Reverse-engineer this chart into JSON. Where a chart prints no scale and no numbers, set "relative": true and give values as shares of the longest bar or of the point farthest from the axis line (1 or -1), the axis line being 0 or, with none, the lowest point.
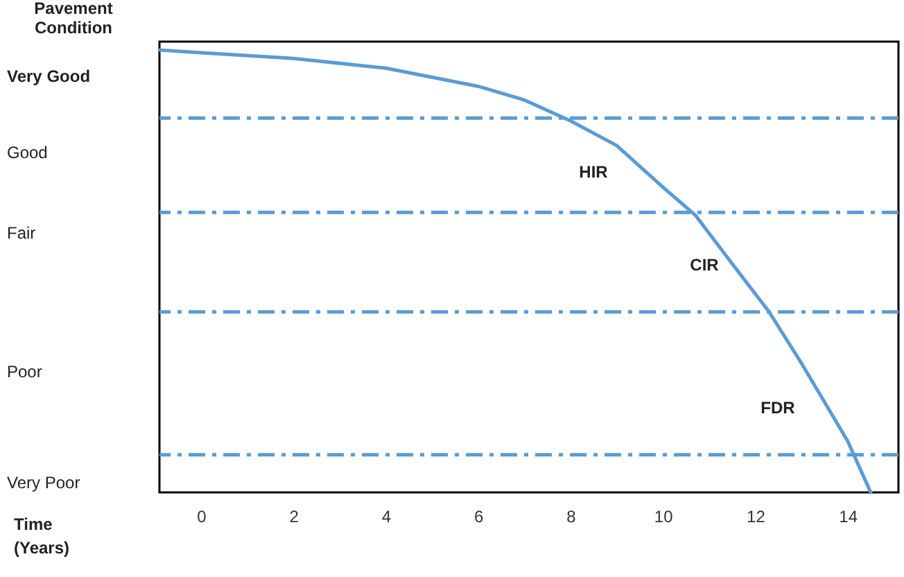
{
  "chart_data": {
    "type": "line",
    "relative": true,
    "ylabel": "Pavement Condition",
    "xlim": [
      -0.9,
      15.1
    ],
    "xticks": [
      0,
      2,
      4,
      6,
      8,
      10,
      12,
      14
    ],
    "x": [
      -0.9,
      0,
      2,
      4,
      6,
      7,
      8,
      9,
      10,
      10.7,
      11.5,
      12.3,
      13,
      14,
      14.5
    ],
    "series": [
      {
        "color": "#5b9bd5",
        "line_style": "solid",
        "values": [
          1,
          0.994,
          0.981,
          0.959,
          0.918,
          0.887,
          0.84,
          0.784,
          0.69,
          0.627,
          0.517,
          0.408,
          0.292,
          0.116,
          0
        ]
      }
    ],
    "ref_lines": [
      {
        "axis": "y",
        "value": 0.846,
        "color": "#5b9bd5",
        "line_style": "dashed"
      },
      {
        "axis": "y",
        "value": 0.633,
        "color": "#5b9bd5",
        "line_style": "dashed"
      },
      {
        "axis": "y",
        "value": 0.408,
        "color": "#5b9bd5",
        "line_style": "dashed"
      },
      {
        "axis": "y",
        "value": 0.085,
        "color": "#5b9bd5",
        "line_style": "dashed"
      }
    ],
    "annotations": [
      "Time (Years)",
      "HIR",
      "CIR",
      "FDR",
      "Very Good",
      "Good",
      "Fair",
      "Poor",
      "Very Poor"
    ]
  }
}
